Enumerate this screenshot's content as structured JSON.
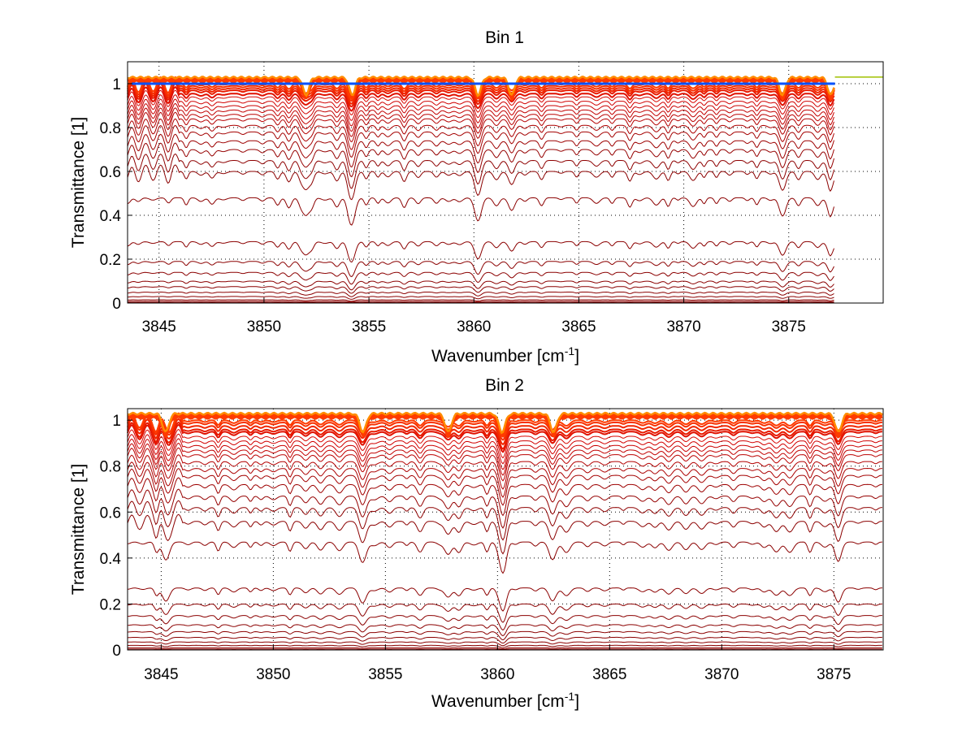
{
  "chart_data": [
    {
      "type": "line",
      "title": "Bin 1",
      "xlabel": "Wavenumber [cm",
      "xlabel_sup": "-1",
      "xlabel_end": "]",
      "ylabel": "Transmittance [1]",
      "xlim": [
        3843.5,
        3879.5
      ],
      "ylim": [
        0,
        1.1
      ],
      "data_x_end": 3877.2,
      "xticks": [
        3845,
        3850,
        3855,
        3860,
        3865,
        3870,
        3875
      ],
      "yticks": [
        0,
        0.2,
        0.4,
        0.6,
        0.8,
        1
      ],
      "ytick_labels": [
        "0",
        "0.2",
        "0.4",
        "0.6",
        "0.8",
        "1"
      ],
      "grid": true,
      "dips": [
        {
          "x": 3852.0,
          "depth": 0.7
        },
        {
          "x": 3854.2,
          "depth": 1.0
        },
        {
          "x": 3860.2,
          "depth": 0.55
        },
        {
          "x": 3861.8,
          "depth": 0.45
        },
        {
          "x": 3874.7,
          "depth": 0.7
        },
        {
          "x": 3877.0,
          "depth": 0.6
        }
      ],
      "series_levels": [
        0.0,
        0.003,
        0.008,
        0.015,
        0.03,
        0.05,
        0.075,
        0.1,
        0.14,
        0.19,
        0.28,
        0.48,
        0.6,
        0.65,
        0.7,
        0.74,
        0.78,
        0.81,
        0.84,
        0.86,
        0.88,
        0.9,
        0.92,
        0.94,
        0.955,
        0.97,
        0.98,
        0.99,
        1.0
      ],
      "colors": {
        "dark": "#8b0000",
        "mid": "#d40000",
        "hot": "#ff3b00",
        "top": "#ff8c00",
        "accent_blue": "#0050ff",
        "accent_green": "#a0c000"
      }
    },
    {
      "type": "line",
      "title": "Bin 2",
      "xlabel": "Wavenumber [cm",
      "xlabel_sup": "-1",
      "xlabel_end": "]",
      "ylabel": "Transmittance [1]",
      "xlim": [
        3843.5,
        3877.2
      ],
      "ylim": [
        0,
        1.05
      ],
      "data_x_end": 3877.2,
      "xticks": [
        3845,
        3850,
        3855,
        3860,
        3865,
        3870,
        3875
      ],
      "yticks": [
        0,
        0.2,
        0.4,
        0.6,
        0.8,
        1
      ],
      "ytick_labels": [
        "0",
        "0.2",
        "0.4",
        "0.6",
        "0.8",
        "1"
      ],
      "grid": true,
      "dips": [
        {
          "x": 3845.2,
          "depth": 0.6
        },
        {
          "x": 3854.0,
          "depth": 0.75
        },
        {
          "x": 3857.8,
          "depth": 0.5
        },
        {
          "x": 3860.2,
          "depth": 1.0
        },
        {
          "x": 3862.5,
          "depth": 0.4
        },
        {
          "x": 3875.2,
          "depth": 0.5
        }
      ],
      "series_levels": [
        0.0,
        0.004,
        0.01,
        0.02,
        0.035,
        0.055,
        0.08,
        0.11,
        0.15,
        0.2,
        0.27,
        0.47,
        0.56,
        0.62,
        0.67,
        0.72,
        0.76,
        0.79,
        0.82,
        0.85,
        0.87,
        0.89,
        0.91,
        0.93,
        0.95,
        0.96,
        0.975,
        0.99,
        1.0
      ],
      "colors": {
        "dark": "#8b0000",
        "mid": "#d40000",
        "hot": "#ff3b00",
        "top": "#ff8c00",
        "accent_blue": "#0050ff",
        "accent_green": "#a0c000"
      }
    }
  ]
}
